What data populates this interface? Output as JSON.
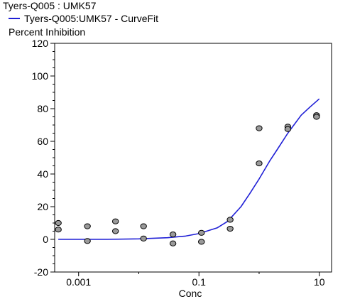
{
  "chart_data": {
    "type": "scatter",
    "title": "Tyers-Q005 : UMK57",
    "ylabel": "Percent Inhibition",
    "xlabel": "Conc",
    "x_scale": "log",
    "xlim": [
      0.0004,
      16
    ],
    "ylim": [
      -20,
      120
    ],
    "x_ticks": [
      0.001,
      0.1,
      10
    ],
    "x_tick_labels": [
      "0.001",
      "0.1",
      "10"
    ],
    "y_ticks": [
      -20,
      0,
      20,
      40,
      60,
      80,
      100,
      120
    ],
    "y_tick_labels": [
      "-20",
      "0",
      "20",
      "40",
      "60",
      "80",
      "100",
      "120"
    ],
    "legend_position": "top-left",
    "series": [
      {
        "kind": "points",
        "points": [
          {
            "x": 0.00046,
            "y": 10.0
          },
          {
            "x": 0.00046,
            "y": 6.0
          },
          {
            "x": 0.0014,
            "y": 8.0
          },
          {
            "x": 0.0014,
            "y": -1.0
          },
          {
            "x": 0.0041,
            "y": 11.0
          },
          {
            "x": 0.0041,
            "y": 5.0
          },
          {
            "x": 0.012,
            "y": 8.0
          },
          {
            "x": 0.012,
            "y": 0.5
          },
          {
            "x": 0.037,
            "y": 3.0
          },
          {
            "x": 0.037,
            "y": -2.5
          },
          {
            "x": 0.11,
            "y": 4.0
          },
          {
            "x": 0.11,
            "y": -1.5
          },
          {
            "x": 0.33,
            "y": 12.0
          },
          {
            "x": 0.33,
            "y": 6.5
          },
          {
            "x": 1.0,
            "y": 68.0
          },
          {
            "x": 1.0,
            "y": 46.5
          },
          {
            "x": 3.0,
            "y": 69.0
          },
          {
            "x": 3.0,
            "y": 67.5
          },
          {
            "x": 9.0,
            "y": 76.0
          },
          {
            "x": 9.0,
            "y": 75.0
          }
        ]
      },
      {
        "kind": "curve",
        "name": "Tyers-Q005:UMK57 - CurveFit",
        "color": "#1f1fd6",
        "x": [
          0.00046,
          0.001,
          0.003,
          0.01,
          0.03,
          0.06,
          0.1,
          0.2,
          0.3,
          0.5,
          0.7,
          1.0,
          1.5,
          2.0,
          3.0,
          5.0,
          7.0,
          10.0
        ],
        "y": [
          0,
          0,
          0,
          0.3,
          1,
          2,
          3.5,
          7,
          11,
          20,
          28,
          37,
          48,
          55,
          65,
          76,
          81,
          86
        ]
      }
    ],
    "marker_color": "#9a9a9a"
  }
}
